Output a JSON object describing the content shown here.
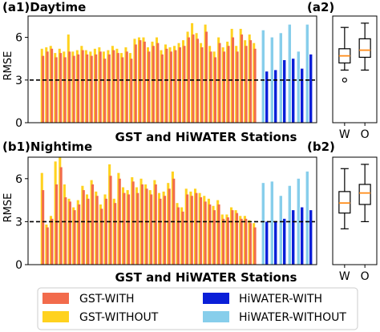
{
  "colors": {
    "gst_with": "#f26b4c",
    "gst_without": "#ffd21f",
    "hiwater_with": "#0a1fd8",
    "hiwater_without": "#87ceeb",
    "median": "#ff8c1a",
    "reference_line": "#000000"
  },
  "legend": [
    {
      "label": "GST-WITH",
      "color": "#f26b4c"
    },
    {
      "label": "HiWATER-WITH",
      "color": "#0a1fd8"
    },
    {
      "label": "GST-WITHOUT",
      "color": "#ffd21f"
    },
    {
      "label": "HiWATER-WITHOUT",
      "color": "#87ceeb"
    }
  ],
  "chart_data": [
    {
      "id": "a1",
      "type": "bar",
      "title": "(a1)Daytime",
      "xlabel": "GST and HiWATER Stations",
      "ylabel": "RMSE",
      "ylim": [
        0,
        7.5
      ],
      "yticks": [
        0,
        3,
        6
      ],
      "reference_line": 3,
      "gst_with": [
        4.7,
        5.0,
        5.2,
        4.6,
        4.9,
        4.6,
        5.0,
        4.7,
        4.8,
        5.1,
        4.8,
        4.7,
        4.8,
        5.0,
        4.5,
        4.8,
        5.1,
        4.9,
        4.6,
        5.0,
        4.5,
        5.5,
        5.8,
        5.7,
        5.0,
        5.4,
        5.6,
        4.8,
        5.2,
        5.0,
        5.1,
        5.3,
        5.4,
        6.0,
        6.2,
        5.9,
        5.3,
        6.4,
        5.0,
        4.6,
        5.6,
        5.0,
        5.4,
        6.0,
        5.0,
        6.2,
        5.4,
        5.8,
        5.2
      ],
      "gst_without": [
        5.2,
        5.3,
        5.4,
        4.9,
        5.2,
        5.0,
        6.2,
        5.0,
        5.1,
        5.4,
        5.1,
        5.0,
        5.2,
        5.3,
        5.0,
        5.1,
        5.4,
        5.2,
        4.9,
        5.3,
        4.9,
        5.9,
        6.0,
        6.0,
        5.3,
        5.7,
        6.0,
        5.1,
        5.5,
        5.3,
        5.4,
        5.6,
        5.8,
        6.4,
        7.0,
        6.3,
        5.6,
        6.9,
        5.4,
        5.0,
        6.0,
        5.3,
        5.7,
        6.6,
        5.4,
        6.6,
        5.8,
        6.2,
        5.6
      ],
      "hiwater_with": [
        3.6,
        3.7,
        4.4,
        4.5,
        3.8,
        4.8
      ],
      "hiwater_without": [
        6.5,
        6.0,
        6.3,
        6.9,
        5.0,
        6.9
      ]
    },
    {
      "id": "a2",
      "type": "box",
      "title": "(a2)",
      "categories": [
        "W",
        "O"
      ],
      "ylim": [
        0,
        7.5
      ],
      "boxes": [
        {
          "whisker_low": 3.7,
          "q1": 4.2,
          "median": 4.7,
          "q3": 5.2,
          "whisker_high": 6.7,
          "outliers": [
            3.0
          ]
        },
        {
          "whisker_low": 3.7,
          "q1": 4.6,
          "median": 5.1,
          "q3": 5.9,
          "whisker_high": 7.0,
          "outliers": []
        }
      ]
    },
    {
      "id": "b1",
      "type": "bar",
      "title": "(b1)Nightime",
      "xlabel": "GST and HiWATER Stations",
      "ylabel": "RMSE",
      "ylim": [
        0,
        7.5
      ],
      "yticks": [
        0,
        3,
        6
      ],
      "reference_line": 3,
      "gst_with": [
        5.2,
        2.6,
        3.2,
        5.6,
        6.8,
        4.7,
        4.4,
        3.8,
        4.2,
        5.2,
        4.6,
        5.6,
        4.8,
        3.9,
        4.6,
        6.2,
        4.3,
        6.0,
        5.0,
        4.9,
        5.8,
        5.0,
        5.6,
        5.3,
        4.9,
        5.6,
        4.6,
        4.8,
        5.3,
        6.0,
        4.0,
        3.7,
        4.9,
        4.8,
        5.0,
        4.7,
        4.4,
        4.2,
        3.8,
        4.2,
        3.2,
        3.3,
        3.8,
        3.6,
        3.2,
        3.2,
        2.9,
        2.6
      ],
      "gst_without": [
        6.4,
        2.8,
        3.4,
        7.2,
        7.5,
        5.6,
        4.6,
        4.0,
        4.5,
        5.5,
        4.9,
        5.9,
        5.1,
        4.2,
        4.9,
        7.0,
        4.6,
        6.4,
        5.4,
        5.2,
        6.1,
        5.4,
        6.0,
        5.6,
        5.2,
        5.9,
        5.0,
        5.1,
        5.7,
        6.5,
        4.3,
        4.0,
        5.3,
        5.1,
        5.3,
        5.0,
        4.8,
        4.6,
        4.1,
        4.5,
        3.5,
        3.5,
        4.0,
        3.8,
        3.4,
        3.4,
        3.1,
        2.9
      ],
      "hiwater_with": [
        3.0,
        3.0,
        3.2,
        3.8,
        4.0,
        3.8
      ],
      "hiwater_without": [
        5.7,
        5.8,
        4.8,
        5.5,
        6.0,
        6.5
      ]
    },
    {
      "id": "b2",
      "type": "box",
      "title": "(b2)",
      "categories": [
        "W",
        "O"
      ],
      "ylim": [
        0,
        7.5
      ],
      "boxes": [
        {
          "whisker_low": 2.5,
          "q1": 3.6,
          "median": 4.3,
          "q3": 5.1,
          "whisker_high": 6.7,
          "outliers": []
        },
        {
          "whisker_low": 3.0,
          "q1": 4.2,
          "median": 5.0,
          "q3": 5.6,
          "whisker_high": 7.0,
          "outliers": []
        }
      ]
    }
  ]
}
